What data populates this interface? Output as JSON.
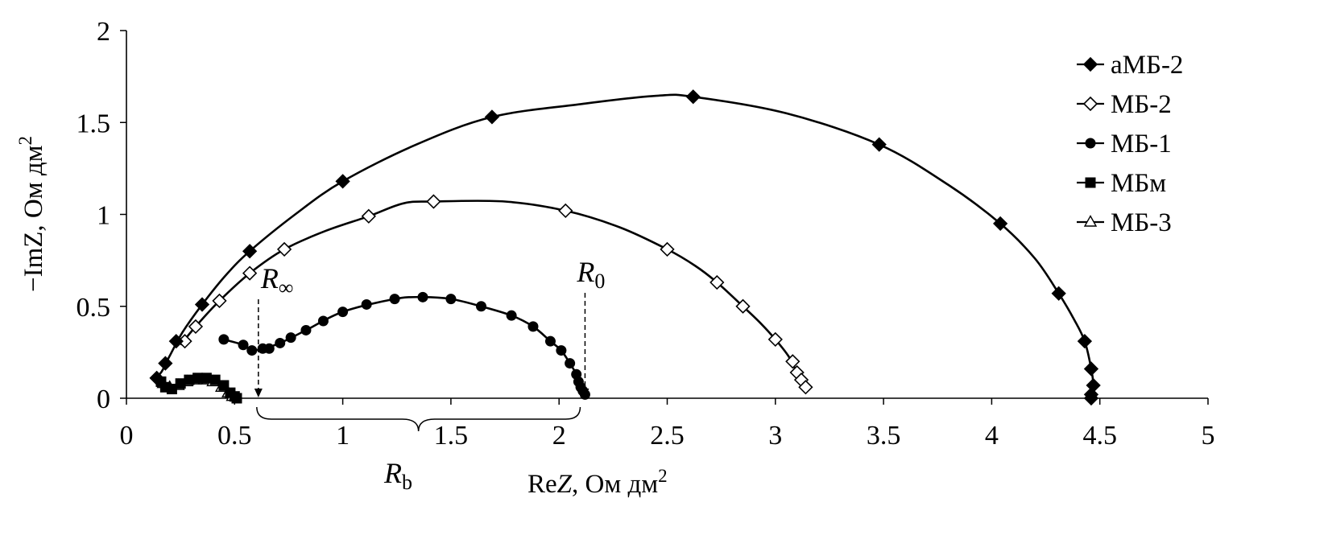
{
  "chart_data": {
    "type": "scatter",
    "title": "",
    "xlabel": {
      "prefix": "Re",
      "var": "Z",
      "unit": ", Ом дм",
      "sup": "2"
    },
    "ylabel": {
      "prefix": "−ImZ, Ом дм",
      "sup": "2"
    },
    "xlim": [
      0,
      5
    ],
    "ylim": [
      0,
      2
    ],
    "xticks": [
      "0",
      "0.5",
      "1",
      "1.5",
      "2",
      "2.5",
      "3",
      "3.5",
      "4",
      "4.5",
      "5"
    ],
    "yticks": [
      "0",
      "0.5",
      "1",
      "1.5",
      "2"
    ],
    "grid": false,
    "legend_position": "top-right",
    "series": [
      {
        "name": "аМБ-2",
        "marker": "diamond-filled",
        "points": [
          [
            0.14,
            0.11
          ],
          [
            0.18,
            0.19
          ],
          [
            0.23,
            0.31
          ],
          [
            0.35,
            0.51
          ],
          [
            0.57,
            0.8
          ],
          [
            1.0,
            1.18
          ],
          [
            1.69,
            1.53
          ],
          [
            2.62,
            1.64
          ],
          [
            3.48,
            1.38
          ],
          [
            4.04,
            0.95
          ],
          [
            4.31,
            0.57
          ],
          [
            4.43,
            0.31
          ],
          [
            4.46,
            0.16
          ],
          [
            4.47,
            0.07
          ],
          [
            4.46,
            0.02
          ],
          [
            4.46,
            0.0
          ]
        ],
        "curve": [
          [
            0.12,
            0.1
          ],
          [
            0.16,
            0.14
          ],
          [
            0.2,
            0.23
          ],
          [
            0.26,
            0.36
          ],
          [
            0.35,
            0.51
          ],
          [
            0.46,
            0.67
          ],
          [
            0.57,
            0.8
          ],
          [
            0.78,
            1.0
          ],
          [
            1.0,
            1.18
          ],
          [
            1.34,
            1.38
          ],
          [
            1.69,
            1.53
          ],
          [
            2.1,
            1.6
          ],
          [
            2.45,
            1.645
          ],
          [
            2.62,
            1.64
          ],
          [
            3.05,
            1.55
          ],
          [
            3.48,
            1.38
          ],
          [
            3.8,
            1.16
          ],
          [
            4.04,
            0.95
          ],
          [
            4.2,
            0.76
          ],
          [
            4.31,
            0.57
          ],
          [
            4.38,
            0.43
          ],
          [
            4.43,
            0.31
          ],
          [
            4.46,
            0.16
          ],
          [
            4.47,
            0.07
          ],
          [
            4.46,
            0.0
          ]
        ]
      },
      {
        "name": "МБ-2",
        "marker": "diamond-open",
        "points": [
          [
            0.27,
            0.31
          ],
          [
            0.32,
            0.39
          ],
          [
            0.43,
            0.53
          ],
          [
            0.57,
            0.68
          ],
          [
            0.73,
            0.81
          ],
          [
            1.12,
            0.99
          ],
          [
            1.42,
            1.07
          ],
          [
            2.03,
            1.02
          ],
          [
            2.5,
            0.81
          ],
          [
            2.73,
            0.63
          ],
          [
            2.85,
            0.5
          ],
          [
            3.0,
            0.32
          ],
          [
            3.08,
            0.2
          ],
          [
            3.1,
            0.14
          ],
          [
            3.12,
            0.1
          ],
          [
            3.14,
            0.06
          ]
        ],
        "curve": [
          [
            0.25,
            0.29
          ],
          [
            0.32,
            0.39
          ],
          [
            0.43,
            0.53
          ],
          [
            0.57,
            0.68
          ],
          [
            0.73,
            0.81
          ],
          [
            0.92,
            0.91
          ],
          [
            1.12,
            0.99
          ],
          [
            1.28,
            1.06
          ],
          [
            1.42,
            1.07
          ],
          [
            1.75,
            1.07
          ],
          [
            2.03,
            1.02
          ],
          [
            2.28,
            0.93
          ],
          [
            2.5,
            0.81
          ],
          [
            2.63,
            0.72
          ],
          [
            2.73,
            0.63
          ],
          [
            2.85,
            0.5
          ],
          [
            2.93,
            0.41
          ],
          [
            3.0,
            0.32
          ],
          [
            3.06,
            0.23
          ],
          [
            3.1,
            0.14
          ],
          [
            3.14,
            0.06
          ]
        ]
      },
      {
        "name": "МБ-1",
        "marker": "circle-filled",
        "points": [
          [
            0.45,
            0.32
          ],
          [
            0.54,
            0.29
          ],
          [
            0.58,
            0.26
          ],
          [
            0.63,
            0.27
          ],
          [
            0.66,
            0.27
          ],
          [
            0.71,
            0.3
          ],
          [
            0.76,
            0.33
          ],
          [
            0.83,
            0.37
          ],
          [
            0.91,
            0.42
          ],
          [
            1.0,
            0.47
          ],
          [
            1.11,
            0.51
          ],
          [
            1.24,
            0.54
          ],
          [
            1.37,
            0.55
          ],
          [
            1.5,
            0.54
          ],
          [
            1.64,
            0.5
          ],
          [
            1.78,
            0.45
          ],
          [
            1.88,
            0.39
          ],
          [
            1.96,
            0.31
          ],
          [
            2.01,
            0.26
          ],
          [
            2.05,
            0.19
          ],
          [
            2.08,
            0.13
          ],
          [
            2.09,
            0.09
          ],
          [
            2.1,
            0.06
          ],
          [
            2.11,
            0.04
          ],
          [
            2.12,
            0.02
          ]
        ],
        "curve": [
          [
            0.45,
            0.32
          ],
          [
            0.54,
            0.29
          ],
          [
            0.58,
            0.26
          ],
          [
            0.63,
            0.27
          ],
          [
            0.71,
            0.3
          ],
          [
            0.83,
            0.37
          ],
          [
            1.0,
            0.47
          ],
          [
            1.24,
            0.54
          ],
          [
            1.37,
            0.55
          ],
          [
            1.5,
            0.54
          ],
          [
            1.64,
            0.5
          ],
          [
            1.78,
            0.45
          ],
          [
            1.88,
            0.39
          ],
          [
            1.96,
            0.31
          ],
          [
            2.01,
            0.26
          ],
          [
            2.05,
            0.19
          ],
          [
            2.08,
            0.13
          ],
          [
            2.1,
            0.06
          ],
          [
            2.12,
            0.02
          ]
        ]
      },
      {
        "name": "МБм",
        "marker": "square-filled",
        "points": [
          [
            0.16,
            0.09
          ],
          [
            0.18,
            0.06
          ],
          [
            0.21,
            0.05
          ],
          [
            0.25,
            0.08
          ],
          [
            0.29,
            0.1
          ],
          [
            0.33,
            0.11
          ],
          [
            0.37,
            0.11
          ],
          [
            0.41,
            0.1
          ],
          [
            0.45,
            0.07
          ],
          [
            0.48,
            0.03
          ],
          [
            0.5,
            0.01
          ],
          [
            0.51,
            0.0
          ]
        ],
        "curve": [
          [
            0.14,
            0.11
          ],
          [
            0.18,
            0.06
          ],
          [
            0.21,
            0.05
          ],
          [
            0.25,
            0.08
          ],
          [
            0.29,
            0.1
          ],
          [
            0.35,
            0.115
          ],
          [
            0.41,
            0.1
          ],
          [
            0.45,
            0.07
          ],
          [
            0.48,
            0.03
          ],
          [
            0.51,
            0.0
          ]
        ]
      },
      {
        "name": "МБ-3",
        "marker": "triangle-open",
        "points": [
          [
            0.17,
            0.08
          ],
          [
            0.2,
            0.06
          ],
          [
            0.24,
            0.07
          ],
          [
            0.28,
            0.09
          ],
          [
            0.32,
            0.1
          ],
          [
            0.36,
            0.1
          ],
          [
            0.4,
            0.09
          ],
          [
            0.44,
            0.06
          ],
          [
            0.47,
            0.03
          ],
          [
            0.49,
            0.01
          ]
        ],
        "curve": [
          [
            0.17,
            0.08
          ],
          [
            0.2,
            0.06
          ],
          [
            0.24,
            0.07
          ],
          [
            0.28,
            0.09
          ],
          [
            0.34,
            0.1
          ],
          [
            0.4,
            0.09
          ],
          [
            0.44,
            0.06
          ],
          [
            0.47,
            0.03
          ],
          [
            0.49,
            0.01
          ]
        ]
      }
    ],
    "annotations": {
      "r_inf": {
        "symbol": "R",
        "sub": "∞",
        "x": 0.61
      },
      "r_0": {
        "symbol": "R",
        "sub": "0",
        "x": 2.12
      },
      "r_b": {
        "symbol": "R",
        "sub": "b",
        "x_from": 0.61,
        "x_to": 2.12
      }
    }
  }
}
